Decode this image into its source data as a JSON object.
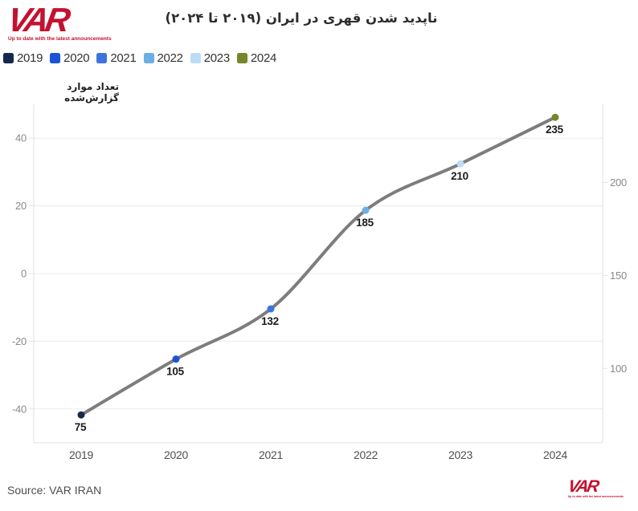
{
  "brand": {
    "logo_text": "VAR",
    "tagline": "Up to date with the latest announcements",
    "color": "#c31230"
  },
  "header": {
    "title": "ناپدید شدن قهری در ایران (۲۰۱۹ تا ۲۰۲۴)"
  },
  "legend": [
    {
      "label": "2019",
      "color": "#16284d"
    },
    {
      "label": "2020",
      "color": "#1d54d7"
    },
    {
      "label": "2021",
      "color": "#3c74dd"
    },
    {
      "label": "2022",
      "color": "#6cafe7"
    },
    {
      "label": "2023",
      "color": "#bcdcf5"
    },
    {
      "label": "2024",
      "color": "#77862b"
    }
  ],
  "chart_data": {
    "type": "line",
    "title": "ناپدید شدن قهری در ایران (۲۰۱۹ تا ۲۰۲۴)",
    "ylabel": "تعداد موارد گزارش‌شده",
    "xlabel": "",
    "categories": [
      "2019",
      "2020",
      "2021",
      "2022",
      "2023",
      "2024"
    ],
    "values": [
      75,
      105,
      132,
      185,
      210,
      235
    ],
    "point_colors": [
      "#16284d",
      "#1d54d7",
      "#3c74dd",
      "#6cafe7",
      "#bcdcf5",
      "#77862b"
    ],
    "line_color": "#7d7d7d",
    "grid": true,
    "legend_position": "top-left",
    "left_axis": {
      "ticks": [
        40,
        20,
        0,
        -20,
        -40
      ],
      "range": [
        -50,
        50
      ]
    },
    "right_axis": {
      "ticks": [
        200,
        150,
        100
      ],
      "range": [
        60,
        242
      ]
    },
    "colors": {
      "grid": "#ececec",
      "axis": "#e0e0e0",
      "tick_label": "#8a8a8a",
      "x_label": "#4f4f4f",
      "point_label": "#1c1c1c"
    }
  },
  "footer": {
    "source": "Source: VAR IRAN"
  }
}
